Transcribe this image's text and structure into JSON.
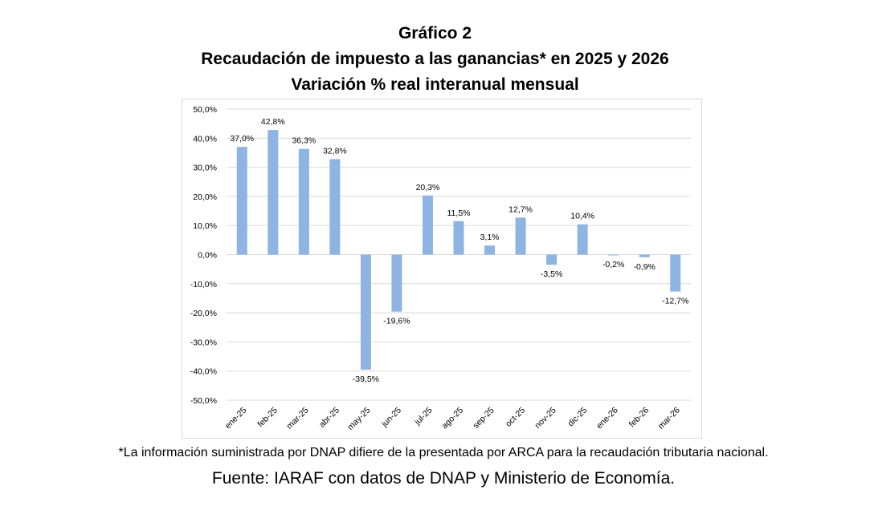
{
  "chart_data": {
    "type": "bar",
    "title": "Gráfico 2",
    "subtitle": "Recaudación  de impuesto a las ganancias*  en 2025  y 2026",
    "subtitle2": "Variación  % real interanual  mensual",
    "categories": [
      "ene-25",
      "feb-25",
      "mar-25",
      "abr-25",
      "may-25",
      "jun-25",
      "jul-25",
      "ago-25",
      "sep-25",
      "oct-25",
      "nov-25",
      "dic-25",
      "ene-26",
      "feb-26",
      "mar-26"
    ],
    "values": [
      37.0,
      42.8,
      36.3,
      32.8,
      -39.5,
      -19.6,
      20.3,
      11.5,
      3.1,
      12.7,
      -3.5,
      10.4,
      -0.2,
      -0.9,
      -12.7
    ],
    "data_labels": [
      "37,0%",
      "42,8%",
      "36,3%",
      "32,8%",
      "-39,5%",
      "-19,6%",
      "20,3%",
      "11,5%",
      "3,1%",
      "12,7%",
      "-3,5%",
      "10,4%",
      "-0,2%",
      "-0,9%",
      "-12,7%"
    ],
    "yticks": [
      50,
      40,
      30,
      20,
      10,
      0,
      -10,
      -20,
      -30,
      -40,
      -50
    ],
    "ytick_labels": [
      "50,0%",
      "40,0%",
      "30,0%",
      "20,0%",
      "10,0%",
      "0,0%",
      "-10,0%",
      "-20,0%",
      "-30,0%",
      "-40,0%",
      "-50,0%"
    ],
    "ylim": [
      -50,
      50
    ],
    "xlabel": "",
    "ylabel": "",
    "grid": true,
    "bar_color": "#8db4e2"
  },
  "footnote": "*La información suministrada por DNAP difiere de la presentada por ARCA para la recaudación tributaria nacional.",
  "source": "Fuente: IARAF con datos de DNAP y Ministerio de Economía."
}
